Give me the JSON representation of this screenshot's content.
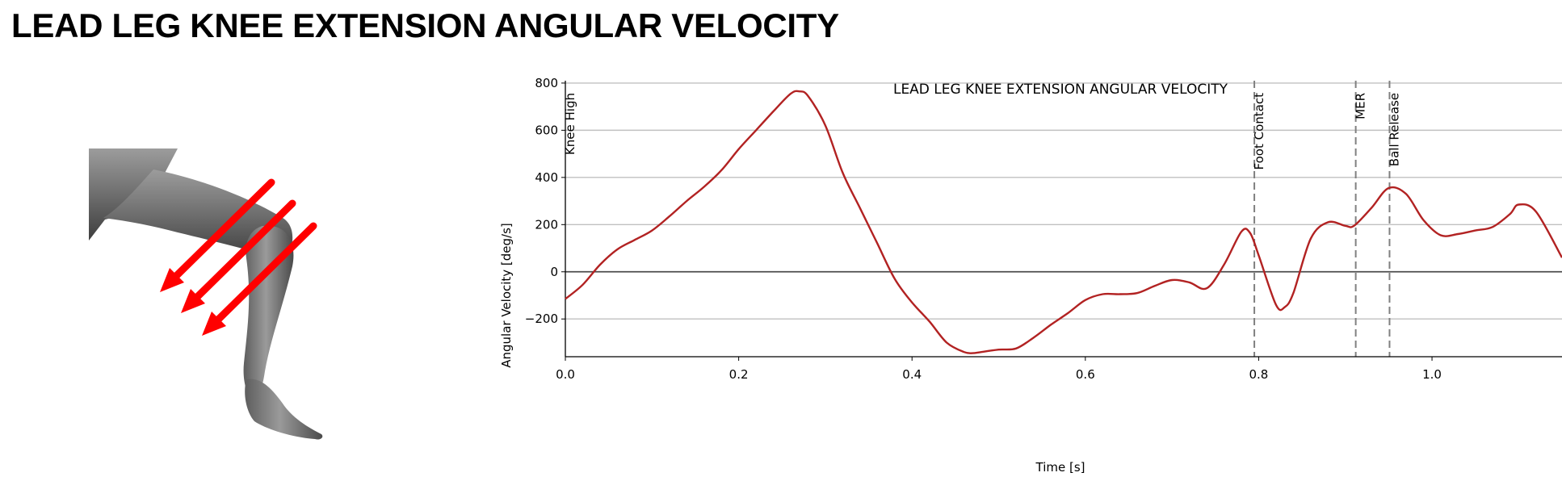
{
  "page": {
    "heading": "LEAD LEG KNEE EXTENSION ANGULAR VELOCITY"
  },
  "illustration": {
    "icon": "knee-extension-leg-icon",
    "arrow_color": "#ff0000",
    "leg_color": "#7a7a7a"
  },
  "chart_data": {
    "type": "line",
    "title": "LEAD LEG KNEE EXTENSION ANGULAR VELOCITY",
    "xlabel": "Time [s]",
    "ylabel": "Angular Velocity [deg/s]",
    "xlim": [
      0.0,
      1.15
    ],
    "ylim": [
      -360,
      810
    ],
    "x_ticks": [
      0.0,
      0.2,
      0.4,
      0.6,
      0.8,
      1.0
    ],
    "x_tick_labels": [
      "0.0",
      "0.2",
      "0.4",
      "0.6",
      "0.8",
      "1.0"
    ],
    "y_ticks": [
      -200,
      0,
      200,
      400,
      600,
      800
    ],
    "y_tick_labels": [
      "−200",
      "0",
      "200",
      "400",
      "600",
      "800"
    ],
    "grid": "horizontal",
    "zero_line": true,
    "series": [
      {
        "color": "#b22222",
        "x": [
          0.0,
          0.02,
          0.04,
          0.06,
          0.08,
          0.1,
          0.12,
          0.14,
          0.16,
          0.18,
          0.2,
          0.22,
          0.24,
          0.26,
          0.27,
          0.28,
          0.3,
          0.32,
          0.34,
          0.36,
          0.38,
          0.4,
          0.42,
          0.44,
          0.46,
          0.47,
          0.48,
          0.5,
          0.52,
          0.54,
          0.56,
          0.58,
          0.6,
          0.62,
          0.64,
          0.66,
          0.68,
          0.7,
          0.72,
          0.74,
          0.76,
          0.78,
          0.79,
          0.8,
          0.82,
          0.83,
          0.84,
          0.86,
          0.88,
          0.9,
          0.91,
          0.93,
          0.95,
          0.97,
          0.99,
          1.01,
          1.03,
          1.05,
          1.07,
          1.09,
          1.1,
          1.12,
          1.15
        ],
        "y": [
          -115,
          -55,
          30,
          95,
          135,
          175,
          235,
          300,
          360,
          430,
          520,
          600,
          680,
          755,
          765,
          745,
          620,
          420,
          270,
          120,
          -30,
          -130,
          -210,
          -300,
          -340,
          -345,
          -340,
          -330,
          -325,
          -280,
          -225,
          -175,
          -120,
          -95,
          -95,
          -90,
          -60,
          -35,
          -45,
          -70,
          30,
          170,
          165,
          70,
          -140,
          -150,
          -90,
          140,
          210,
          195,
          195,
          270,
          355,
          330,
          220,
          155,
          160,
          175,
          190,
          245,
          285,
          255,
          60
        ]
      }
    ],
    "events": [
      {
        "label": "Knee High",
        "x": 0.0
      },
      {
        "label": "Foot Contact",
        "x": 0.795
      },
      {
        "label": "MER",
        "x": 0.912
      },
      {
        "label": "Ball Release",
        "x": 0.951
      }
    ],
    "colors": {
      "grid": "#c0c0c0",
      "axis": "#000000",
      "zero_line": "#4d4d4d",
      "event_line": "#808080"
    }
  }
}
